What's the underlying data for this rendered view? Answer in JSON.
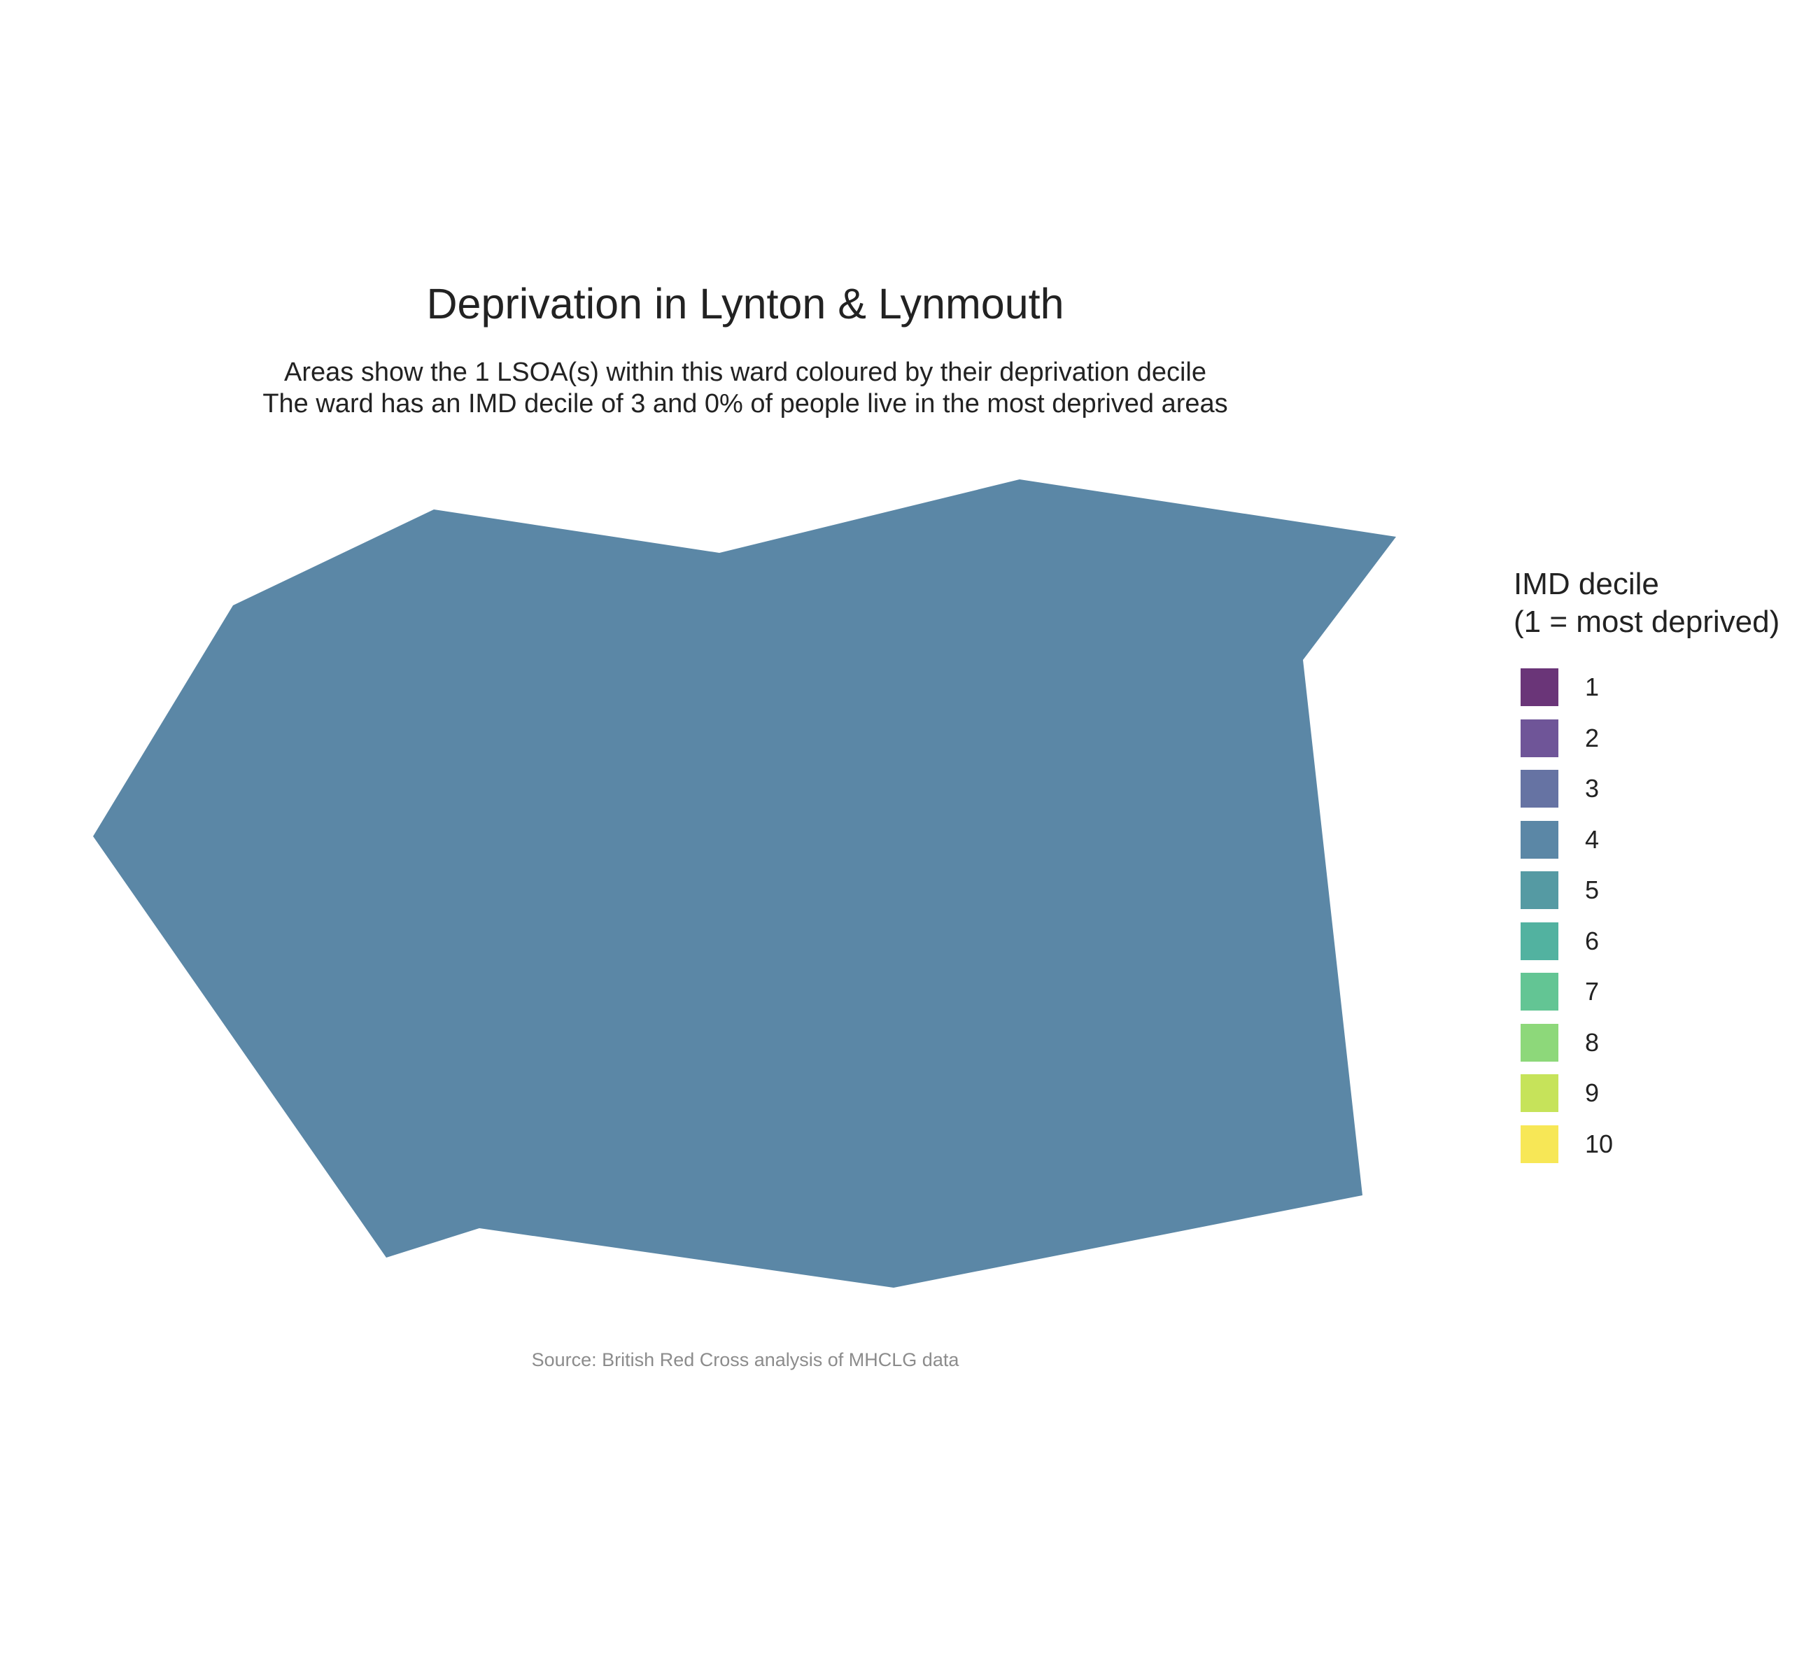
{
  "map": {
    "title": "Deprivation in Lynton & Lynmouth",
    "subtitle_line1": "Areas show the 1 LSOA(s) within this ward coloured by their deprivation decile",
    "subtitle_line2": "The ward has an IMD decile of 3 and 0% of people live in the most deprived areas",
    "caption": "Source: British Red Cross analysis of MHCLG data",
    "areas": [
      {
        "imd_decile": 4,
        "fill": "#5b87a6"
      }
    ]
  },
  "legend": {
    "title_line1": "IMD decile",
    "title_line2": "(1 = most deprived)",
    "items": [
      {
        "label": "1",
        "color": "#6a3578"
      },
      {
        "label": "2",
        "color": "#6f5598"
      },
      {
        "label": "3",
        "color": "#6673a3"
      },
      {
        "label": "4",
        "color": "#5b87a6"
      },
      {
        "label": "5",
        "color": "#559aa3"
      },
      {
        "label": "6",
        "color": "#52b2a0"
      },
      {
        "label": "7",
        "color": "#63c594"
      },
      {
        "label": "8",
        "color": "#8dd87a"
      },
      {
        "label": "9",
        "color": "#c6e35a"
      },
      {
        "label": "10",
        "color": "#f7e756"
      }
    ]
  }
}
